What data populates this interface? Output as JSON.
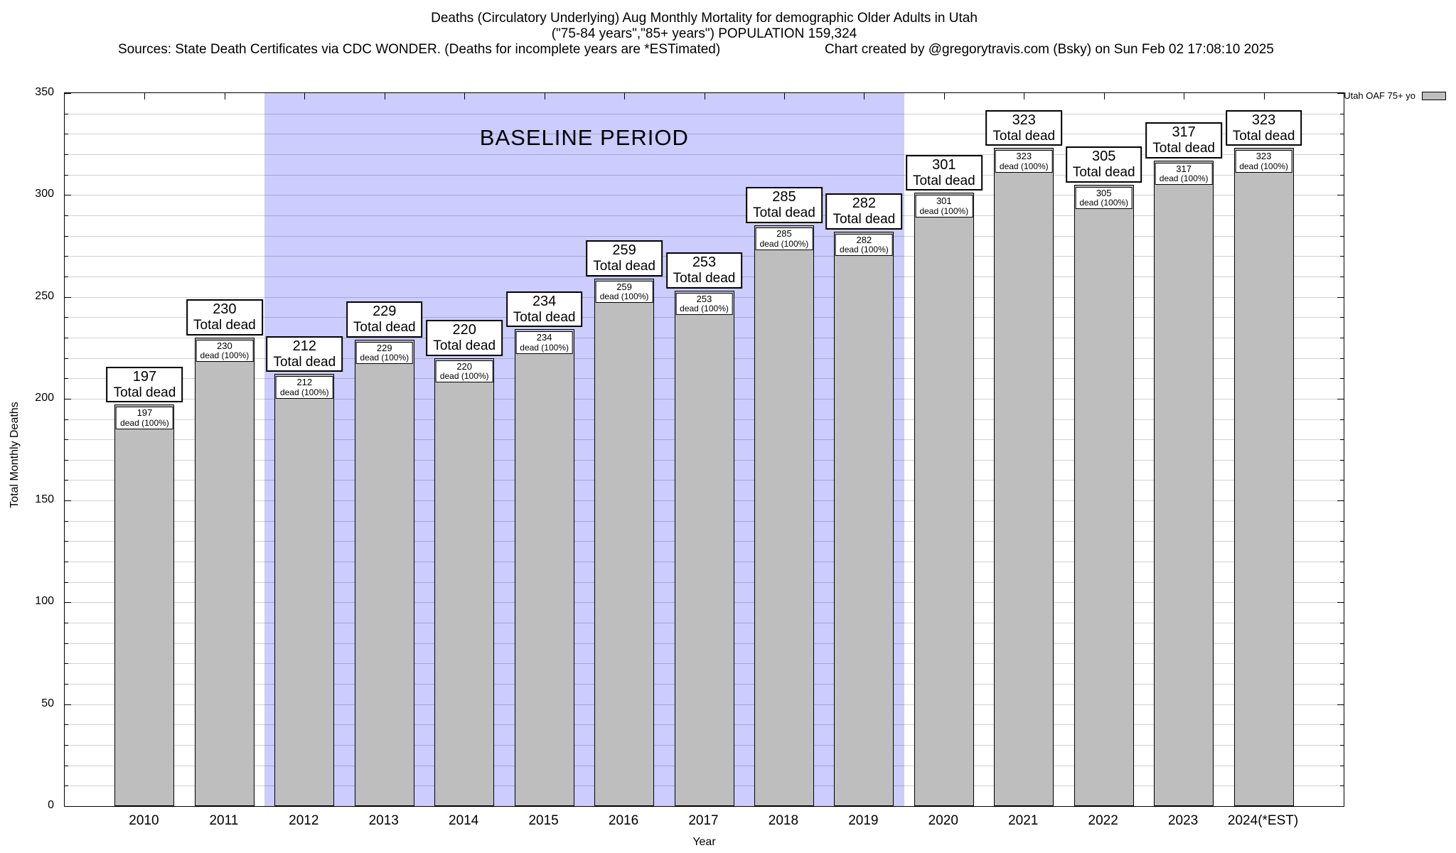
{
  "header": {
    "title_line1": "Deaths (Circulatory Underlying) Aug Monthly Mortality for demographic Older Adults in Utah",
    "title_line2": "(\"75-84 years\",\"85+ years\") POPULATION 159,324",
    "sources": "Sources: State Death Certificates via CDC WONDER. (Deaths for incomplete years are *ESTimated)",
    "credit": "Chart created by @gregorytravis.com (Bsky) on Sun Feb 02 17:08:10 2025"
  },
  "legend": {
    "label": "Utah OAF 75+ yo",
    "swatch_color": "#bebebe"
  },
  "chart_data": {
    "type": "bar",
    "title": "Deaths (Circulatory Underlying) Aug Monthly Mortality for demographic Older Adults in Utah",
    "subtitle": "(\"75-84 years\",\"85+ years\") POPULATION 159,324",
    "categories": [
      "2010",
      "2011",
      "2012",
      "2013",
      "2014",
      "2015",
      "2016",
      "2017",
      "2018",
      "2019",
      "2020",
      "2021",
      "2022",
      "2023",
      "2024(*EST)"
    ],
    "values": [
      197,
      230,
      212,
      229,
      220,
      234,
      259,
      253,
      285,
      282,
      301,
      323,
      305,
      317,
      323
    ],
    "bar_label_suffix": "Total dead",
    "bar_sublabel_suffix": "dead (100%)",
    "xlabel": "Year",
    "ylabel": "Total Monthly Deaths",
    "ylim": [
      0,
      350
    ],
    "yticks": [
      0,
      50,
      100,
      150,
      200,
      250,
      300,
      350
    ],
    "minor_grid_step": 10,
    "grid": true,
    "bar_color": "#bebebe",
    "baseline_region": {
      "label": "BASELINE PERIOD",
      "start_category": "2012",
      "end_category": "2019",
      "color": "#ccccff"
    },
    "legend_label": "Utah OAF 75+ yo",
    "legend_position": "top-right-outside"
  }
}
